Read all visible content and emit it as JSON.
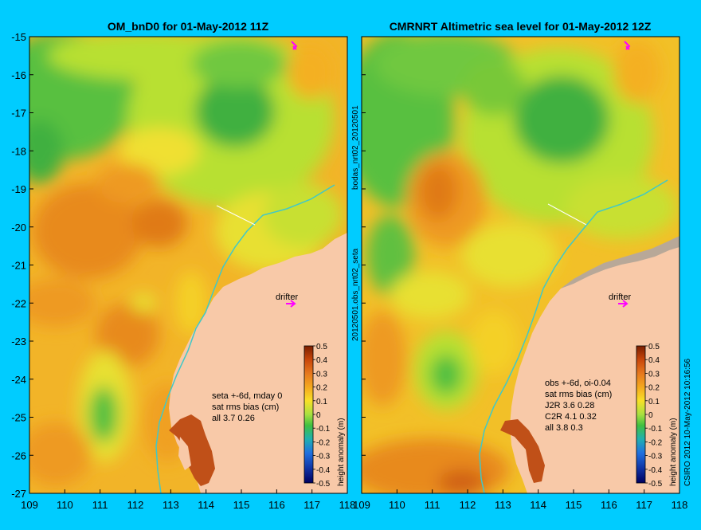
{
  "colors": {
    "background": "#00CCFF",
    "land": "#F8C9A8",
    "land_dark": "#7A2A00",
    "coastline_shelf": "#40C8C8",
    "drifter": "#FF00FF"
  },
  "left_panel": {
    "title": "OM_bnD0 for 01-May-2012 11Z",
    "drifter_label": "drifter",
    "stats": [
      "seta +-6d, mday 0",
      "sat rms bias (cm)",
      "all 3.7 0.26"
    ]
  },
  "right_panel": {
    "title": "CMRNRT Altimetric sea level  for 01-May-2012 12Z",
    "drifter_label": "drifter",
    "stats": [
      "obs +-6d, oi-0.04",
      "sat rms bias (cm)",
      "J2R   3.6 0.28",
      "C2R   4.1 0.32",
      "all 3.8 0.3"
    ]
  },
  "middle_labels": {
    "upper": "bodas_nrt02_20120501",
    "lower": "20120501.obs_nrt02_seta"
  },
  "footer_credit": "CSIRO 2012  10-May-2012 10:16:56",
  "colorbar": {
    "label": "height anomaly (m)",
    "ticks": [
      "0.5",
      "0.4",
      "0.3",
      "0.2",
      "0.1",
      "0",
      "-0.1",
      "-0.2",
      "-0.3",
      "-0.4",
      "-0.5"
    ]
  },
  "axes": {
    "x_ticks": [
      "109",
      "110",
      "111",
      "112",
      "113",
      "114",
      "115",
      "116",
      "117",
      "118"
    ],
    "y_ticks": [
      "-15",
      "-16",
      "-17",
      "-18",
      "-19",
      "-20",
      "-21",
      "-22",
      "-23",
      "-24",
      "-25",
      "-26",
      "-27"
    ]
  }
}
